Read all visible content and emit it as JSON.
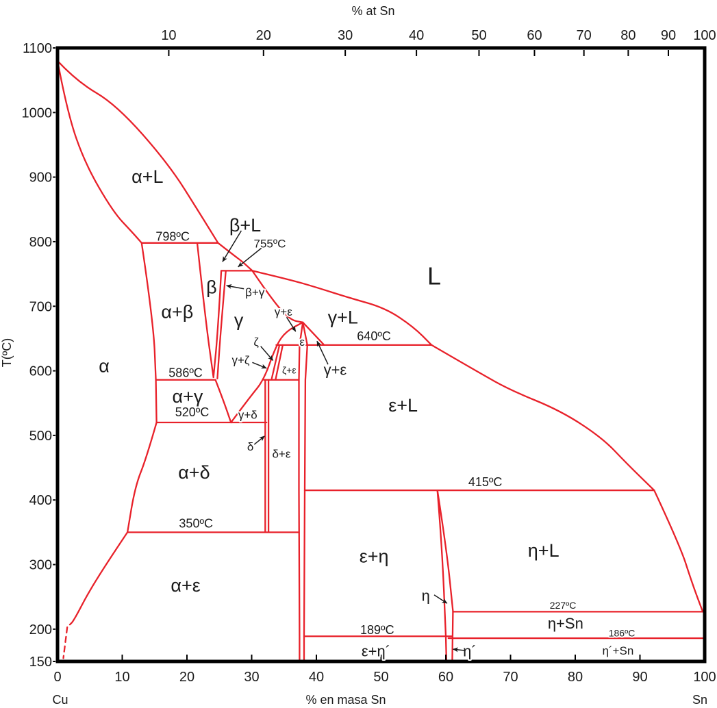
{
  "page": {
    "title": "Cu-Sn phase diagram"
  },
  "colors": {
    "line": "#e8212a",
    "text": "#1a1a1a",
    "frame": "#000000"
  },
  "chart_data": {
    "type": "phase-diagram",
    "title": "",
    "axes": {
      "x_bottom": {
        "label": "% en masa Sn",
        "min": 0,
        "max": 100,
        "ticks": [
          0,
          10,
          20,
          30,
          40,
          50,
          60,
          70,
          80,
          90,
          100
        ],
        "corner_left": "Cu",
        "corner_right": "Sn"
      },
      "x_top": {
        "label": "% at Sn",
        "ticks": [
          10,
          20,
          30,
          40,
          50,
          60,
          70,
          80,
          90,
          100
        ],
        "tick_positions_wt": [
          17.19,
          31.83,
          44.46,
          55.46,
          65.13,
          73.7,
          81.34,
          88.19,
          94.39,
          100
        ]
      },
      "y_left": {
        "label": "T(ºC)",
        "min": 150,
        "max": 1100,
        "ticks": [
          1100,
          1000,
          900,
          800,
          700,
          600,
          500,
          400,
          300,
          200,
          150
        ]
      }
    },
    "isotherms": [
      {
        "t": 798,
        "wt_from": 13.0,
        "wt_to": 24.8,
        "label": "798ºC"
      },
      {
        "t": 755,
        "wt_from": 25.3,
        "wt_to": 30.1,
        "label": "755ºC"
      },
      {
        "t": 640,
        "wt_from": 33.8,
        "wt_to": 57.8,
        "label": "640ºC"
      },
      {
        "t": 586,
        "wt_from": 15.2,
        "wt_to": 24.4,
        "label": "586ºC"
      },
      {
        "t": 586,
        "wt_from": 31.9,
        "wt_to": 37.3,
        "label": ""
      },
      {
        "t": 520,
        "wt_from": 15.3,
        "wt_to": 32.3,
        "label": "520ºC"
      },
      {
        "t": 415,
        "wt_from": 38.2,
        "wt_to": 92.2,
        "label": "415ºC"
      },
      {
        "t": 350,
        "wt_from": 10.8,
        "wt_to": 37.3,
        "label": "350ºC"
      },
      {
        "t": 227,
        "wt_from": 61.1,
        "wt_to": 99.7,
        "label": "227ºC"
      },
      {
        "t": 189,
        "wt_from": 38.1,
        "wt_to": 61.0,
        "label": "189ºC"
      },
      {
        "t": 186,
        "wt_from": 60.4,
        "wt_to": 100,
        "label": "186ºC"
      }
    ],
    "boundaries": [
      {
        "name": "liquidus-alpha",
        "mode": "smooth",
        "points": [
          [
            0,
            1080
          ],
          [
            3,
            1048
          ],
          [
            9.1,
            1012
          ],
          [
            17.2,
            920
          ],
          [
            22.1,
            842
          ],
          [
            24.8,
            798
          ]
        ]
      },
      {
        "name": "liquidus-beta",
        "mode": "smooth",
        "points": [
          [
            24.8,
            798
          ],
          [
            27.1,
            780
          ],
          [
            28.7,
            768
          ],
          [
            30.1,
            755
          ]
        ]
      },
      {
        "name": "liquidus-gamma",
        "mode": "smooth",
        "points": [
          [
            30.1,
            755
          ],
          [
            36,
            741
          ],
          [
            40.1,
            729
          ],
          [
            45.1,
            713
          ],
          [
            50.7,
            697
          ],
          [
            55,
            668
          ],
          [
            57.8,
            640
          ]
        ]
      },
      {
        "name": "liquidus-epsilon",
        "mode": "smooth",
        "points": [
          [
            57.8,
            640
          ],
          [
            65,
            598
          ],
          [
            70,
            570
          ],
          [
            77.8,
            538
          ],
          [
            84.2,
            496
          ],
          [
            88,
            456
          ],
          [
            92.2,
            415
          ]
        ]
      },
      {
        "name": "liquidus-eta",
        "mode": "smooth",
        "points": [
          [
            92.2,
            415
          ],
          [
            96.2,
            329
          ],
          [
            98,
            273
          ],
          [
            99.7,
            227
          ]
        ]
      },
      {
        "name": "solidus-alpha",
        "mode": "smooth",
        "points": [
          [
            0,
            1080
          ],
          [
            1.5,
            1000
          ],
          [
            4.3,
            920
          ],
          [
            8.6,
            846
          ],
          [
            11.5,
            815
          ],
          [
            13,
            798
          ]
        ]
      },
      {
        "name": "alpha-beta-solvus",
        "mode": "smooth",
        "points": [
          [
            13,
            798
          ],
          [
            14.8,
            676
          ],
          [
            15.2,
            586
          ]
        ]
      },
      {
        "name": "alpha-586-520",
        "mode": "line",
        "points": [
          [
            15.2,
            586
          ],
          [
            15.3,
            520
          ]
        ]
      },
      {
        "name": "alpha-solvus-mid",
        "mode": "smooth",
        "points": [
          [
            15.3,
            520
          ],
          [
            13.7,
            464
          ],
          [
            12,
            421
          ],
          [
            10.8,
            350
          ]
        ]
      },
      {
        "name": "alpha-solvus-low",
        "mode": "smooth",
        "points": [
          [
            10.8,
            350
          ],
          [
            8.0,
            308
          ],
          [
            4.9,
            259
          ],
          [
            2.5,
            213
          ],
          [
            1.9,
            207
          ]
        ]
      },
      {
        "name": "alpha-solvus-dashed",
        "mode": "line",
        "dashed": true,
        "points": [
          [
            1.5,
            203
          ],
          [
            0.9,
            155
          ]
        ]
      },
      {
        "name": "beta-left",
        "mode": "smooth",
        "points": [
          [
            21.6,
            797
          ],
          [
            22.9,
            676
          ],
          [
            24.1,
            590
          ]
        ]
      },
      {
        "name": "beta-right",
        "mode": "smooth",
        "points": [
          [
            25.3,
            755
          ],
          [
            24.8,
            665
          ],
          [
            24.1,
            590
          ]
        ]
      },
      {
        "name": "beta-gamma-right",
        "mode": "smooth",
        "points": [
          [
            26.0,
            754
          ],
          [
            25.2,
            660
          ],
          [
            24.7,
            588
          ]
        ]
      },
      {
        "name": "gamma-left-lower",
        "mode": "smooth",
        "points": [
          [
            24.4,
            586
          ],
          [
            25.6,
            555
          ],
          [
            26.8,
            520
          ]
        ]
      },
      {
        "name": "gamma-right-curve",
        "mode": "smooth",
        "points": [
          [
            26.8,
            520
          ],
          [
            29.7,
            559
          ],
          [
            31.9,
            586
          ],
          [
            33.8,
            640
          ],
          [
            35.3,
            661
          ],
          [
            37.9,
            675
          ]
        ]
      },
      {
        "name": "gamma-solidus",
        "mode": "smooth",
        "points": [
          [
            30.1,
            755
          ],
          [
            33.1,
            711
          ],
          [
            35.9,
            679
          ],
          [
            37.9,
            675
          ]
        ]
      },
      {
        "name": "dome-right",
        "mode": "smooth",
        "points": [
          [
            37.9,
            675
          ],
          [
            39.8,
            655
          ],
          [
            41.2,
            640
          ]
        ]
      },
      {
        "name": "epsilon-left",
        "mode": "line",
        "points": [
          [
            37.9,
            675
          ],
          [
            37.4,
            640
          ],
          [
            37.3,
            586
          ],
          [
            37.3,
            415
          ],
          [
            37.4,
            189
          ],
          [
            37.4,
            150
          ]
        ]
      },
      {
        "name": "epsilon-right",
        "mode": "line",
        "points": [
          [
            37.9,
            675
          ],
          [
            38.6,
            640
          ],
          [
            38.3,
            586
          ],
          [
            38.2,
            415
          ],
          [
            38.1,
            189
          ],
          [
            38.1,
            150
          ]
        ]
      },
      {
        "name": "zeta-left",
        "mode": "line",
        "points": [
          [
            34.3,
            640
          ],
          [
            33.1,
            588
          ]
        ]
      },
      {
        "name": "zeta-right",
        "mode": "line",
        "points": [
          [
            34.8,
            640
          ],
          [
            33.7,
            587
          ]
        ]
      },
      {
        "name": "delta-left",
        "mode": "line",
        "points": [
          [
            32.1,
            586
          ],
          [
            32.1,
            350
          ]
        ]
      },
      {
        "name": "delta-right",
        "mode": "line",
        "points": [
          [
            32.6,
            586
          ],
          [
            32.6,
            350
          ]
        ]
      },
      {
        "name": "eta-left",
        "mode": "smooth",
        "points": [
          [
            58.7,
            415
          ],
          [
            59.4,
            330
          ],
          [
            60.0,
            189
          ]
        ]
      },
      {
        "name": "eta-prime-left",
        "mode": "line",
        "points": [
          [
            60.0,
            189
          ],
          [
            60.1,
            150
          ]
        ]
      },
      {
        "name": "eta-right",
        "mode": "smooth",
        "points": [
          [
            58.7,
            415
          ],
          [
            60.1,
            325
          ],
          [
            61.1,
            228
          ]
        ]
      },
      {
        "name": "eta-prime-right",
        "mode": "line",
        "points": [
          [
            61.1,
            227
          ],
          [
            61.0,
            150
          ]
        ]
      }
    ],
    "region_labels": [
      {
        "text": "α+L",
        "wt": 13.9,
        "t": 901,
        "cls": "lg"
      },
      {
        "text": "α",
        "wt": 7.2,
        "t": 608,
        "cls": "lg"
      },
      {
        "text": "β+L",
        "wt": 29.0,
        "t": 826,
        "cls": "lg"
      },
      {
        "text": "β",
        "wt": 23.8,
        "t": 730,
        "cls": "lg"
      },
      {
        "text": "α+β",
        "wt": 18.5,
        "t": 692,
        "cls": "lg"
      },
      {
        "text": "β+γ",
        "wt": 30.5,
        "t": 722,
        "cls": "sm"
      },
      {
        "text": "γ",
        "wt": 28.0,
        "t": 679,
        "cls": "lg"
      },
      {
        "text": "α+γ",
        "wt": 20.1,
        "t": 561,
        "cls": "lg"
      },
      {
        "text": "γ+δ",
        "wt": 29.4,
        "t": 532,
        "cls": "sm"
      },
      {
        "text": "γ+ζ",
        "wt": 28.3,
        "t": 617,
        "cls": "sm"
      },
      {
        "text": "ζ",
        "wt": 30.7,
        "t": 645,
        "cls": "sm"
      },
      {
        "text": "γ+ε",
        "wt": 34.9,
        "t": 692,
        "cls": "sm"
      },
      {
        "text": "ε",
        "wt": 37.8,
        "t": 645,
        "cls": "sm"
      },
      {
        "text": "ζ+ε",
        "wt": 35.8,
        "t": 601,
        "cls": "xs"
      },
      {
        "text": "γ+L",
        "wt": 44.1,
        "t": 683,
        "cls": "lg"
      },
      {
        "text": "γ+ε",
        "wt": 42.9,
        "t": 602,
        "cls": "md"
      },
      {
        "text": "L",
        "wt": 58.2,
        "t": 747,
        "cls": "xl"
      },
      {
        "text": "ε+L",
        "wt": 53.4,
        "t": 547,
        "cls": "lg"
      },
      {
        "text": "δ",
        "wt": 29.8,
        "t": 483,
        "cls": "sm"
      },
      {
        "text": "δ+ε",
        "wt": 34.6,
        "t": 472,
        "cls": "sm"
      },
      {
        "text": "α+δ",
        "wt": 21.1,
        "t": 443,
        "cls": "lg"
      },
      {
        "text": "α+ε",
        "wt": 19.8,
        "t": 268,
        "cls": "lg"
      },
      {
        "text": "ε+η",
        "wt": 48.9,
        "t": 313,
        "cls": "lg"
      },
      {
        "text": "η+L",
        "wt": 75.1,
        "t": 322,
        "cls": "lg"
      },
      {
        "text": "η",
        "wt": 56.9,
        "t": 252,
        "cls": "md"
      },
      {
        "text": "η+Sn",
        "wt": 78.5,
        "t": 209,
        "cls": "md"
      },
      {
        "text": "ε+η´",
        "wt": 49.2,
        "t": 166,
        "cls": "md"
      },
      {
        "text": "η´",
        "wt": 63.7,
        "t": 166,
        "cls": "md"
      },
      {
        "text": "η´+Sn",
        "wt": 86.6,
        "t": 167,
        "cls": "sm"
      }
    ],
    "isotherm_labels": [
      {
        "text": "798ºC",
        "wt": 17.8,
        "t": 808,
        "cls": "iso"
      },
      {
        "text": "755ºC",
        "wt": 32.8,
        "t": 797,
        "cls": "sm"
      },
      {
        "text": "586ºC",
        "wt": 19.8,
        "t": 597,
        "cls": "iso"
      },
      {
        "text": "520ºC",
        "wt": 20.8,
        "t": 536,
        "cls": "iso"
      },
      {
        "text": "640ºC",
        "wt": 48.9,
        "t": 654,
        "cls": "iso"
      },
      {
        "text": "415ºC",
        "wt": 66.1,
        "t": 428,
        "cls": "iso"
      },
      {
        "text": "350ºC",
        "wt": 21.4,
        "t": 364,
        "cls": "iso"
      },
      {
        "text": "227ºC",
        "wt": 78.1,
        "t": 237,
        "cls": "xs"
      },
      {
        "text": "189ºC",
        "wt": 49.4,
        "t": 199,
        "cls": "iso"
      },
      {
        "text": "186ºC",
        "wt": 87.2,
        "t": 194,
        "cls": "xs"
      }
    ],
    "arrows": [
      {
        "name": "beta-L-arrow",
        "from": [
          28.4,
          817
        ],
        "to": [
          25.5,
          769
        ]
      },
      {
        "name": "755C-arrow",
        "from": [
          31.5,
          790
        ],
        "to": [
          27.9,
          761
        ]
      },
      {
        "name": "beta-gamma-arrow",
        "from": [
          28.8,
          727
        ],
        "to": [
          26.1,
          732
        ]
      },
      {
        "name": "zeta-arrow",
        "from": [
          31.4,
          638
        ],
        "to": [
          33.3,
          616
        ]
      },
      {
        "name": "gamma-zeta-arrow",
        "from": [
          30.1,
          613
        ],
        "to": [
          32.3,
          604
        ]
      },
      {
        "name": "gamma-eps-up-arrow",
        "from": [
          35.4,
          683
        ],
        "to": [
          36.8,
          661
        ]
      },
      {
        "name": "gamma-eps-low-arrow",
        "from": [
          41.8,
          610
        ],
        "to": [
          40.1,
          646
        ]
      },
      {
        "name": "delta-arrow",
        "from": [
          30.4,
          486
        ],
        "to": [
          32.0,
          499
        ]
      },
      {
        "name": "eta-arrow",
        "from": [
          58.2,
          253
        ],
        "to": [
          60.2,
          240
        ]
      },
      {
        "name": "eta-prime-arrow",
        "from": [
          62.9,
          167
        ],
        "to": [
          61.1,
          169
        ]
      }
    ]
  }
}
